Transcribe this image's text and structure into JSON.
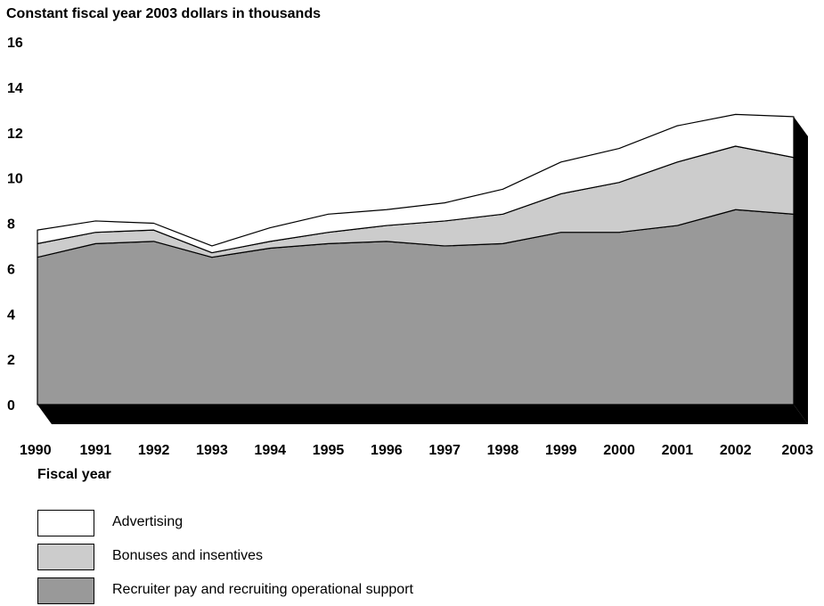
{
  "chart_data": {
    "type": "area",
    "stacked": true,
    "ylabel": "Constant fiscal year 2003 dollars in thousands",
    "xlabel": "Fiscal year",
    "ylim": [
      0,
      16
    ],
    "yticks": [
      0,
      2,
      4,
      6,
      8,
      10,
      12,
      14,
      16
    ],
    "categories": [
      "1990",
      "1991",
      "1992",
      "1993",
      "1994",
      "1995",
      "1996",
      "1997",
      "1998",
      "1999",
      "2000",
      "2001",
      "2002",
      "2003"
    ],
    "series": [
      {
        "name": "Recruiter pay and recruiting operational support",
        "color": "#999999",
        "values": [
          6.5,
          7.1,
          7.2,
          6.5,
          6.9,
          7.1,
          7.2,
          7.0,
          7.1,
          7.6,
          7.6,
          7.9,
          8.6,
          8.4
        ]
      },
      {
        "name": "Bonuses and insentives",
        "color": "#cccccc",
        "values": [
          0.6,
          0.5,
          0.5,
          0.2,
          0.3,
          0.5,
          0.7,
          1.1,
          1.3,
          1.7,
          2.2,
          2.8,
          2.8,
          2.5
        ]
      },
      {
        "name": "Advertising",
        "color": "#ffffff",
        "values": [
          0.6,
          0.5,
          0.3,
          0.3,
          0.6,
          0.8,
          0.7,
          0.8,
          1.1,
          1.4,
          1.5,
          1.6,
          1.4,
          1.8
        ]
      }
    ],
    "legend_order": [
      "Advertising",
      "Bonuses and insentives",
      "Recruiter pay and recruiting operational support"
    ],
    "depth_shadow_color": "#000000",
    "grid": false
  }
}
